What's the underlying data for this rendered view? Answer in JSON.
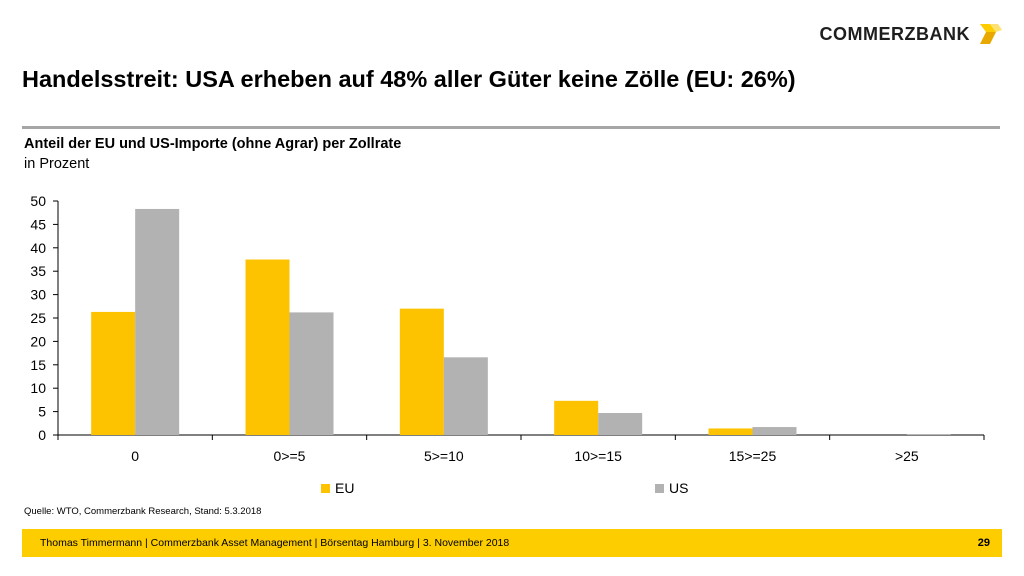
{
  "header": {
    "logo_text": "COMMERZBANK",
    "title": "Handelsstreit: USA erheben auf 48% aller Güter keine Zölle (EU: 26%)"
  },
  "chart_data": {
    "type": "bar",
    "title": "Anteil der EU und US-Importe (ohne Agrar) per Zollrate",
    "subtitle": "in Prozent",
    "categories": [
      "0",
      "0>=5",
      "5>=10",
      "10>=15",
      "15>=25",
      ">25"
    ],
    "series": [
      {
        "name": "EU",
        "values": [
          26.3,
          37.5,
          27.0,
          7.3,
          1.4,
          0.0
        ],
        "color": "#fdc300"
      },
      {
        "name": "US",
        "values": [
          48.3,
          26.2,
          16.6,
          4.7,
          1.7,
          0.2
        ],
        "color": "#b2b2b2"
      }
    ],
    "ylim": [
      0,
      50
    ],
    "yticks": [
      0,
      5,
      10,
      15,
      20,
      25,
      30,
      35,
      40,
      45,
      50
    ],
    "grid": false,
    "legend_position": "bottom"
  },
  "source": "Quelle: WTO, Commerzbank Research, Stand: 5.3.2018",
  "footer": {
    "text": "Thomas Timmermann | Commerzbank Asset Management | Börsentag Hamburg | 3. November 2018",
    "page_number": "29"
  },
  "colors": {
    "accent": "#fdcd00",
    "rule": "#a6a6a6"
  }
}
